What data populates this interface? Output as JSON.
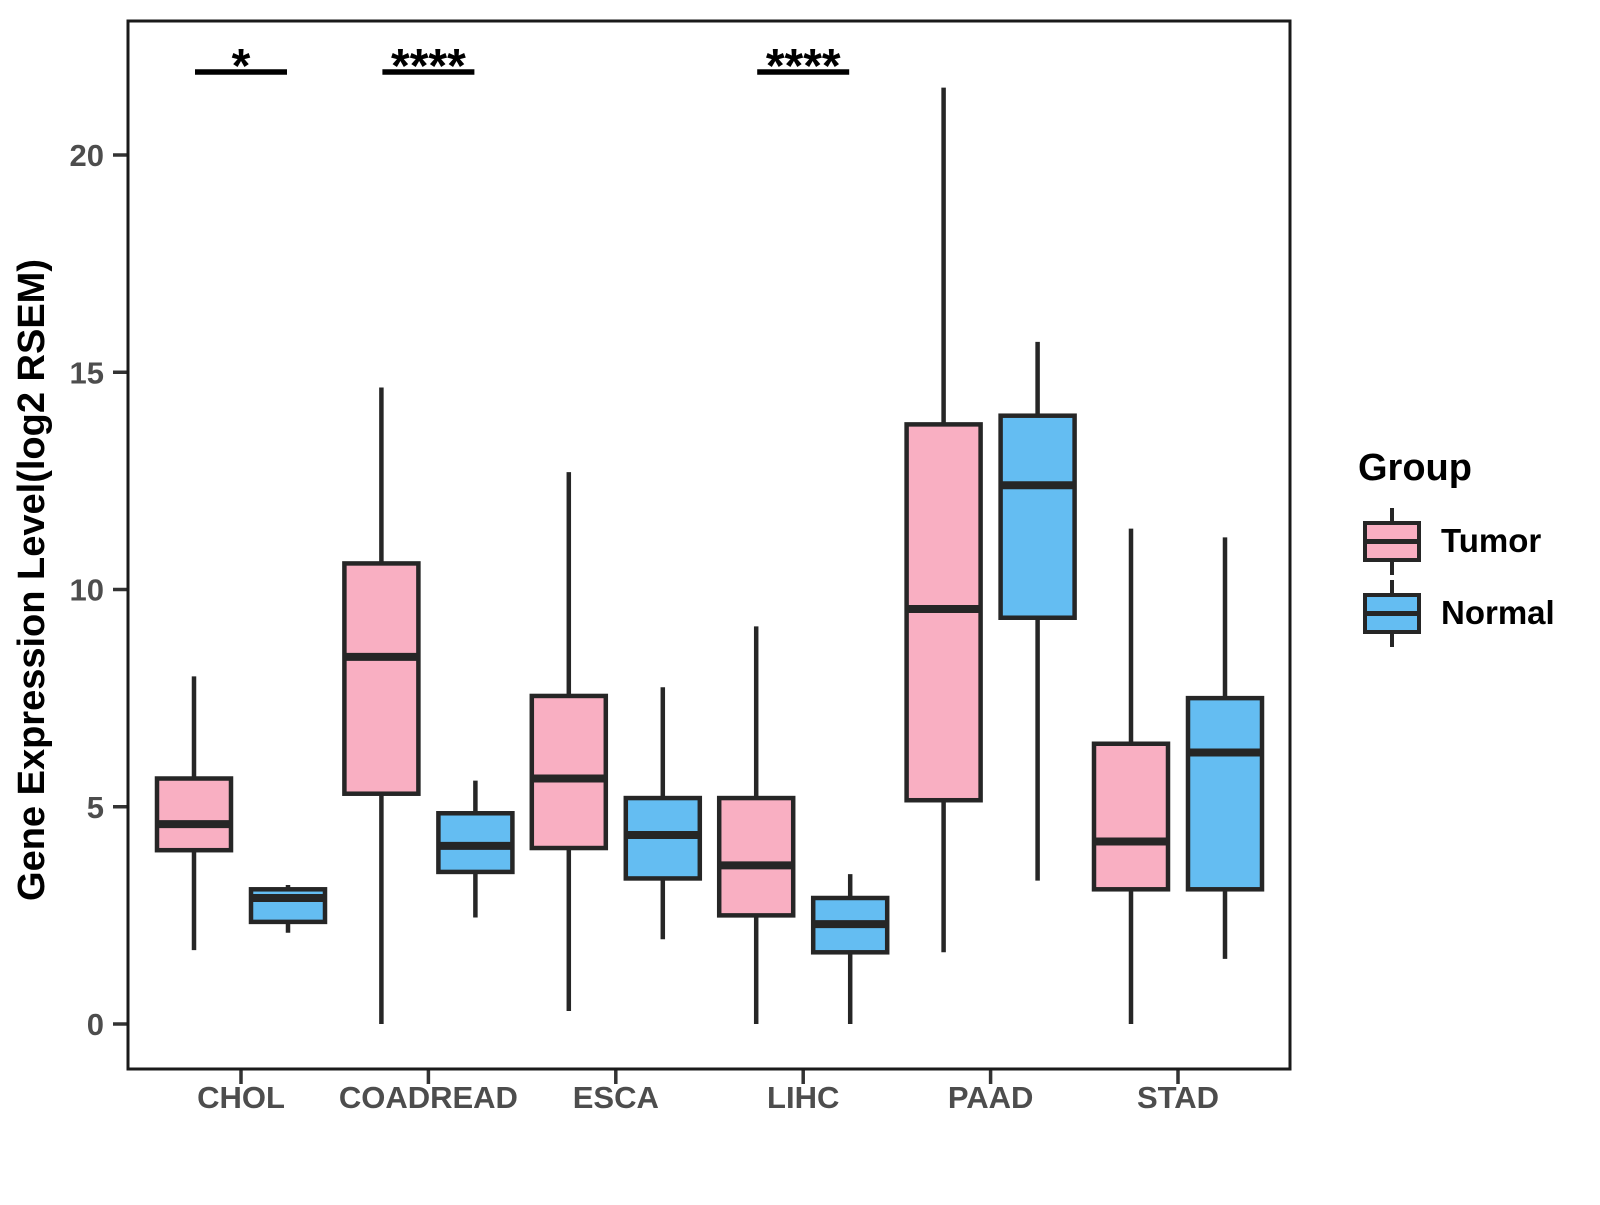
{
  "chart_data": {
    "type": "boxplot",
    "title": "",
    "xlabel": "",
    "ylabel": "Gene Expression Level(log2 RSEM)",
    "ylim": [
      -1,
      23
    ],
    "yticks": [
      0,
      5,
      10,
      15,
      20
    ],
    "grid": false,
    "categories": [
      "CHOL",
      "COADREAD",
      "ESCA",
      "LIHC",
      "PAAD",
      "STAD"
    ],
    "stat_order": [
      "whisker_low",
      "q1",
      "median",
      "q3",
      "whisker_high"
    ],
    "series": [
      {
        "name": "Tumor",
        "fill_color": "#F9AFC2",
        "stroke_color": "#262626",
        "stats": [
          [
            1.7,
            4.0,
            4.6,
            5.65,
            8.0
          ],
          [
            0.0,
            5.3,
            8.45,
            10.6,
            14.65
          ],
          [
            0.3,
            4.05,
            5.65,
            7.55,
            12.7
          ],
          [
            0.0,
            2.5,
            3.65,
            5.2,
            9.15
          ],
          [
            1.65,
            5.15,
            9.55,
            13.8,
            21.55
          ],
          [
            0.0,
            3.1,
            4.2,
            6.45,
            11.4
          ]
        ]
      },
      {
        "name": "Normal",
        "fill_color": "#64BDF2",
        "stroke_color": "#262626",
        "stats": [
          [
            2.1,
            2.35,
            2.9,
            3.1,
            3.2
          ],
          [
            2.45,
            3.5,
            4.1,
            4.85,
            5.6
          ],
          [
            1.95,
            3.35,
            4.35,
            5.2,
            7.75
          ],
          [
            0.0,
            1.65,
            2.3,
            2.9,
            3.45
          ],
          [
            3.3,
            9.35,
            12.4,
            14.0,
            15.7
          ],
          [
            1.5,
            3.1,
            6.25,
            7.5,
            11.2
          ]
        ]
      }
    ],
    "significance": [
      {
        "category": "CHOL",
        "label": "*"
      },
      {
        "category": "COADREAD",
        "label": "****"
      },
      {
        "category": "LIHC",
        "label": "****"
      }
    ],
    "legend": {
      "title": "Group",
      "position": "right",
      "items": [
        {
          "label": "Tumor",
          "color": "#F9AFC2"
        },
        {
          "label": "Normal",
          "color": "#64BDF2"
        }
      ]
    },
    "colors": {
      "tumor": "#F9AFC2",
      "normal": "#64BDF2",
      "box_border": "#262626",
      "axis_text": "#4D4D4D",
      "axis_title": "#000000",
      "panel_border": "#1A1A1A"
    }
  }
}
